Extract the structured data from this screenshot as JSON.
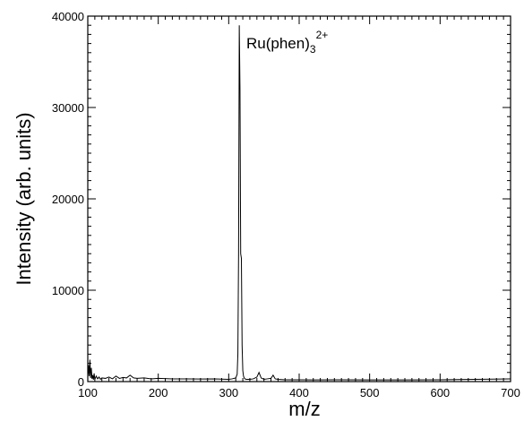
{
  "chart_data": {
    "type": "line",
    "xlabel": "m/z",
    "ylabel": "Intensity (arb. units)",
    "xlim": [
      100,
      700
    ],
    "ylim": [
      0,
      40000
    ],
    "xticks": [
      100,
      200,
      300,
      400,
      500,
      600,
      700
    ],
    "yticks": [
      0,
      10000,
      20000,
      30000,
      40000
    ],
    "xtick_labels": [
      "100",
      "200",
      "300",
      "400",
      "500",
      "600",
      "700"
    ],
    "ytick_labels": [
      "0",
      "10000",
      "20000",
      "30000",
      "40000"
    ],
    "grid": false,
    "annotation": {
      "base": "Ru(phen)",
      "subscript": "3",
      "superscript": "2+",
      "x": 330,
      "y": 38000
    },
    "series": [
      {
        "x": [
          100,
          101,
          102,
          103,
          104,
          105,
          106,
          107,
          108,
          109,
          110,
          112,
          114,
          116,
          118,
          120,
          125,
          130,
          135,
          140,
          145,
          150,
          155,
          160,
          165,
          170,
          180,
          190,
          200,
          220,
          240,
          260,
          280,
          300,
          305,
          310,
          312,
          313,
          314,
          315,
          316,
          317,
          318,
          319,
          320,
          321,
          322,
          323,
          325,
          330,
          335,
          340,
          343,
          346,
          350,
          355,
          360,
          363,
          366,
          370,
          380,
          400,
          420,
          450,
          500,
          550,
          600,
          650,
          700
        ],
        "y": [
          500,
          1800,
          600,
          2400,
          400,
          1500,
          300,
          700,
          200,
          900,
          250,
          600,
          300,
          500,
          250,
          400,
          350,
          500,
          300,
          600,
          350,
          450,
          400,
          700,
          400,
          350,
          400,
          300,
          350,
          300,
          300,
          280,
          300,
          250,
          300,
          400,
          800,
          3000,
          14000,
          39000,
          32000,
          14000,
          13500,
          4000,
          1200,
          600,
          400,
          300,
          250,
          250,
          300,
          500,
          1000,
          400,
          250,
          300,
          350,
          700,
          300,
          250,
          200,
          200,
          180,
          200,
          180,
          180,
          200,
          250,
          300
        ]
      }
    ]
  }
}
